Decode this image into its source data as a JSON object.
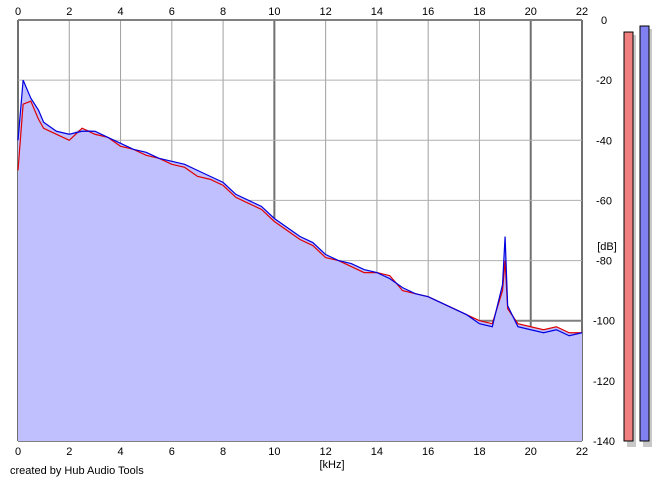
{
  "chart_data": {
    "type": "line",
    "title": "",
    "xlabel": "[kHz]",
    "ylabel": "[dB]",
    "xlim": [
      0,
      22
    ],
    "ylim": [
      -140,
      0
    ],
    "x_ticks": [
      "0",
      "2",
      "4",
      "6",
      "8",
      "10",
      "12",
      "14",
      "16",
      "18",
      "20",
      "22"
    ],
    "y_ticks": [
      "0",
      "-20",
      "-40",
      "-60",
      "-80",
      "-100",
      "-120",
      "-140"
    ],
    "grid": true,
    "legend": "none",
    "fill_color": "#c0c0ff",
    "series": [
      {
        "color": "#e00000",
        "x": [
          0,
          0.2,
          0.5,
          0.8,
          1.0,
          1.5,
          2.0,
          2.5,
          3.0,
          3.5,
          4.0,
          4.5,
          5.0,
          5.5,
          6.0,
          6.5,
          7.0,
          7.5,
          8.0,
          8.5,
          9.0,
          9.5,
          10.0,
          10.5,
          11.0,
          11.5,
          12.0,
          12.5,
          13.0,
          13.5,
          14.0,
          14.5,
          15.0,
          15.5,
          16.0,
          16.5,
          17.0,
          17.5,
          18.0,
          18.5,
          18.9,
          19.0,
          19.1,
          19.5,
          20.0,
          20.5,
          21.0,
          21.5,
          22.0
        ],
        "values": [
          -50,
          -28,
          -27,
          -33,
          -36,
          -38,
          -40,
          -36,
          -38,
          -39,
          -42,
          -43,
          -45,
          -46,
          -48,
          -49,
          -52,
          -53,
          -55,
          -59,
          -61,
          -63,
          -67,
          -70,
          -73,
          -75,
          -79,
          -80,
          -82,
          -84,
          -84,
          -85,
          -90,
          -91,
          -92,
          -94,
          -96,
          -98,
          -100,
          -101,
          -90,
          -80,
          -96,
          -101,
          -102,
          -103,
          -102,
          -104,
          -104
        ]
      },
      {
        "color": "#0000e0",
        "x": [
          0,
          0.2,
          0.5,
          0.8,
          1.0,
          1.5,
          2.0,
          2.5,
          3.0,
          3.5,
          4.0,
          4.5,
          5.0,
          5.5,
          6.0,
          6.5,
          7.0,
          7.5,
          8.0,
          8.5,
          9.0,
          9.5,
          10.0,
          10.5,
          11.0,
          11.5,
          12.0,
          12.5,
          13.0,
          13.5,
          14.0,
          14.5,
          15.0,
          15.5,
          16.0,
          16.5,
          17.0,
          17.5,
          18.0,
          18.5,
          18.9,
          19.0,
          19.1,
          19.5,
          20.0,
          20.5,
          21.0,
          21.5,
          22.0
        ],
        "values": [
          -40,
          -20,
          -26,
          -30,
          -34,
          -37,
          -38,
          -37,
          -37,
          -39,
          -41,
          -43,
          -44,
          -46,
          -47,
          -48,
          -50,
          -52,
          -54,
          -58,
          -60,
          -62,
          -66,
          -69,
          -72,
          -74,
          -78,
          -80,
          -81,
          -83,
          -84,
          -86,
          -89,
          -91,
          -92,
          -94,
          -96,
          -98,
          -101,
          -102,
          -88,
          -72,
          -95,
          -102,
          -103,
          -104,
          -103,
          -105,
          -104
        ]
      }
    ],
    "level_meters": [
      {
        "color": "#f08080",
        "level_db": -4
      },
      {
        "color": "#8080f0",
        "level_db": -2
      }
    ]
  },
  "footer": {
    "credit": "created by Hub Audio Tools"
  }
}
